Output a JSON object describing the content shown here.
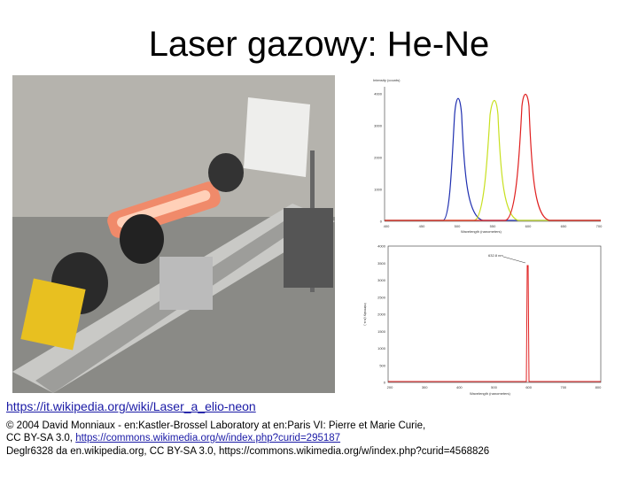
{
  "title": "Laser gazowy: He-Ne",
  "spectrum_top": {
    "y_label": "Intensity (counts)",
    "x_label": "Wavelength (nanometers)",
    "yticks": [
      "4000",
      "3000",
      "2000",
      "1000",
      "0"
    ],
    "xticks": [
      "400",
      "450",
      "500",
      "550",
      "600",
      "650",
      "700"
    ]
  },
  "spectrum_bottom": {
    "y_label": "Intensity (a.u.)",
    "x_label": "Wavelength (nanometers)",
    "annotation": "632.8 nm",
    "yticks": [
      "4000",
      "3500",
      "3000",
      "2500",
      "2000",
      "1500",
      "1000",
      "500",
      "0"
    ],
    "xticks": [
      "200",
      "300",
      "400",
      "500",
      "600",
      "700",
      "800"
    ]
  },
  "link": "https://it.wikipedia.org/wiki/Laser_a_elio-neon",
  "credits": [
    "© 2004 David Monniaux - en:Kastler-Brossel Laboratory at en:Paris VI: Pierre et Marie Curie,",
    "CC BY-SA 3.0, ",
    "https://commons.wikimedia.org/w/index.php?curid=295187",
    "Deglr6328 da en.wikipedia.org, CC BY-SA 3.0, https://commons.wikimedia.org/w/index.php?curid=4568826"
  ]
}
